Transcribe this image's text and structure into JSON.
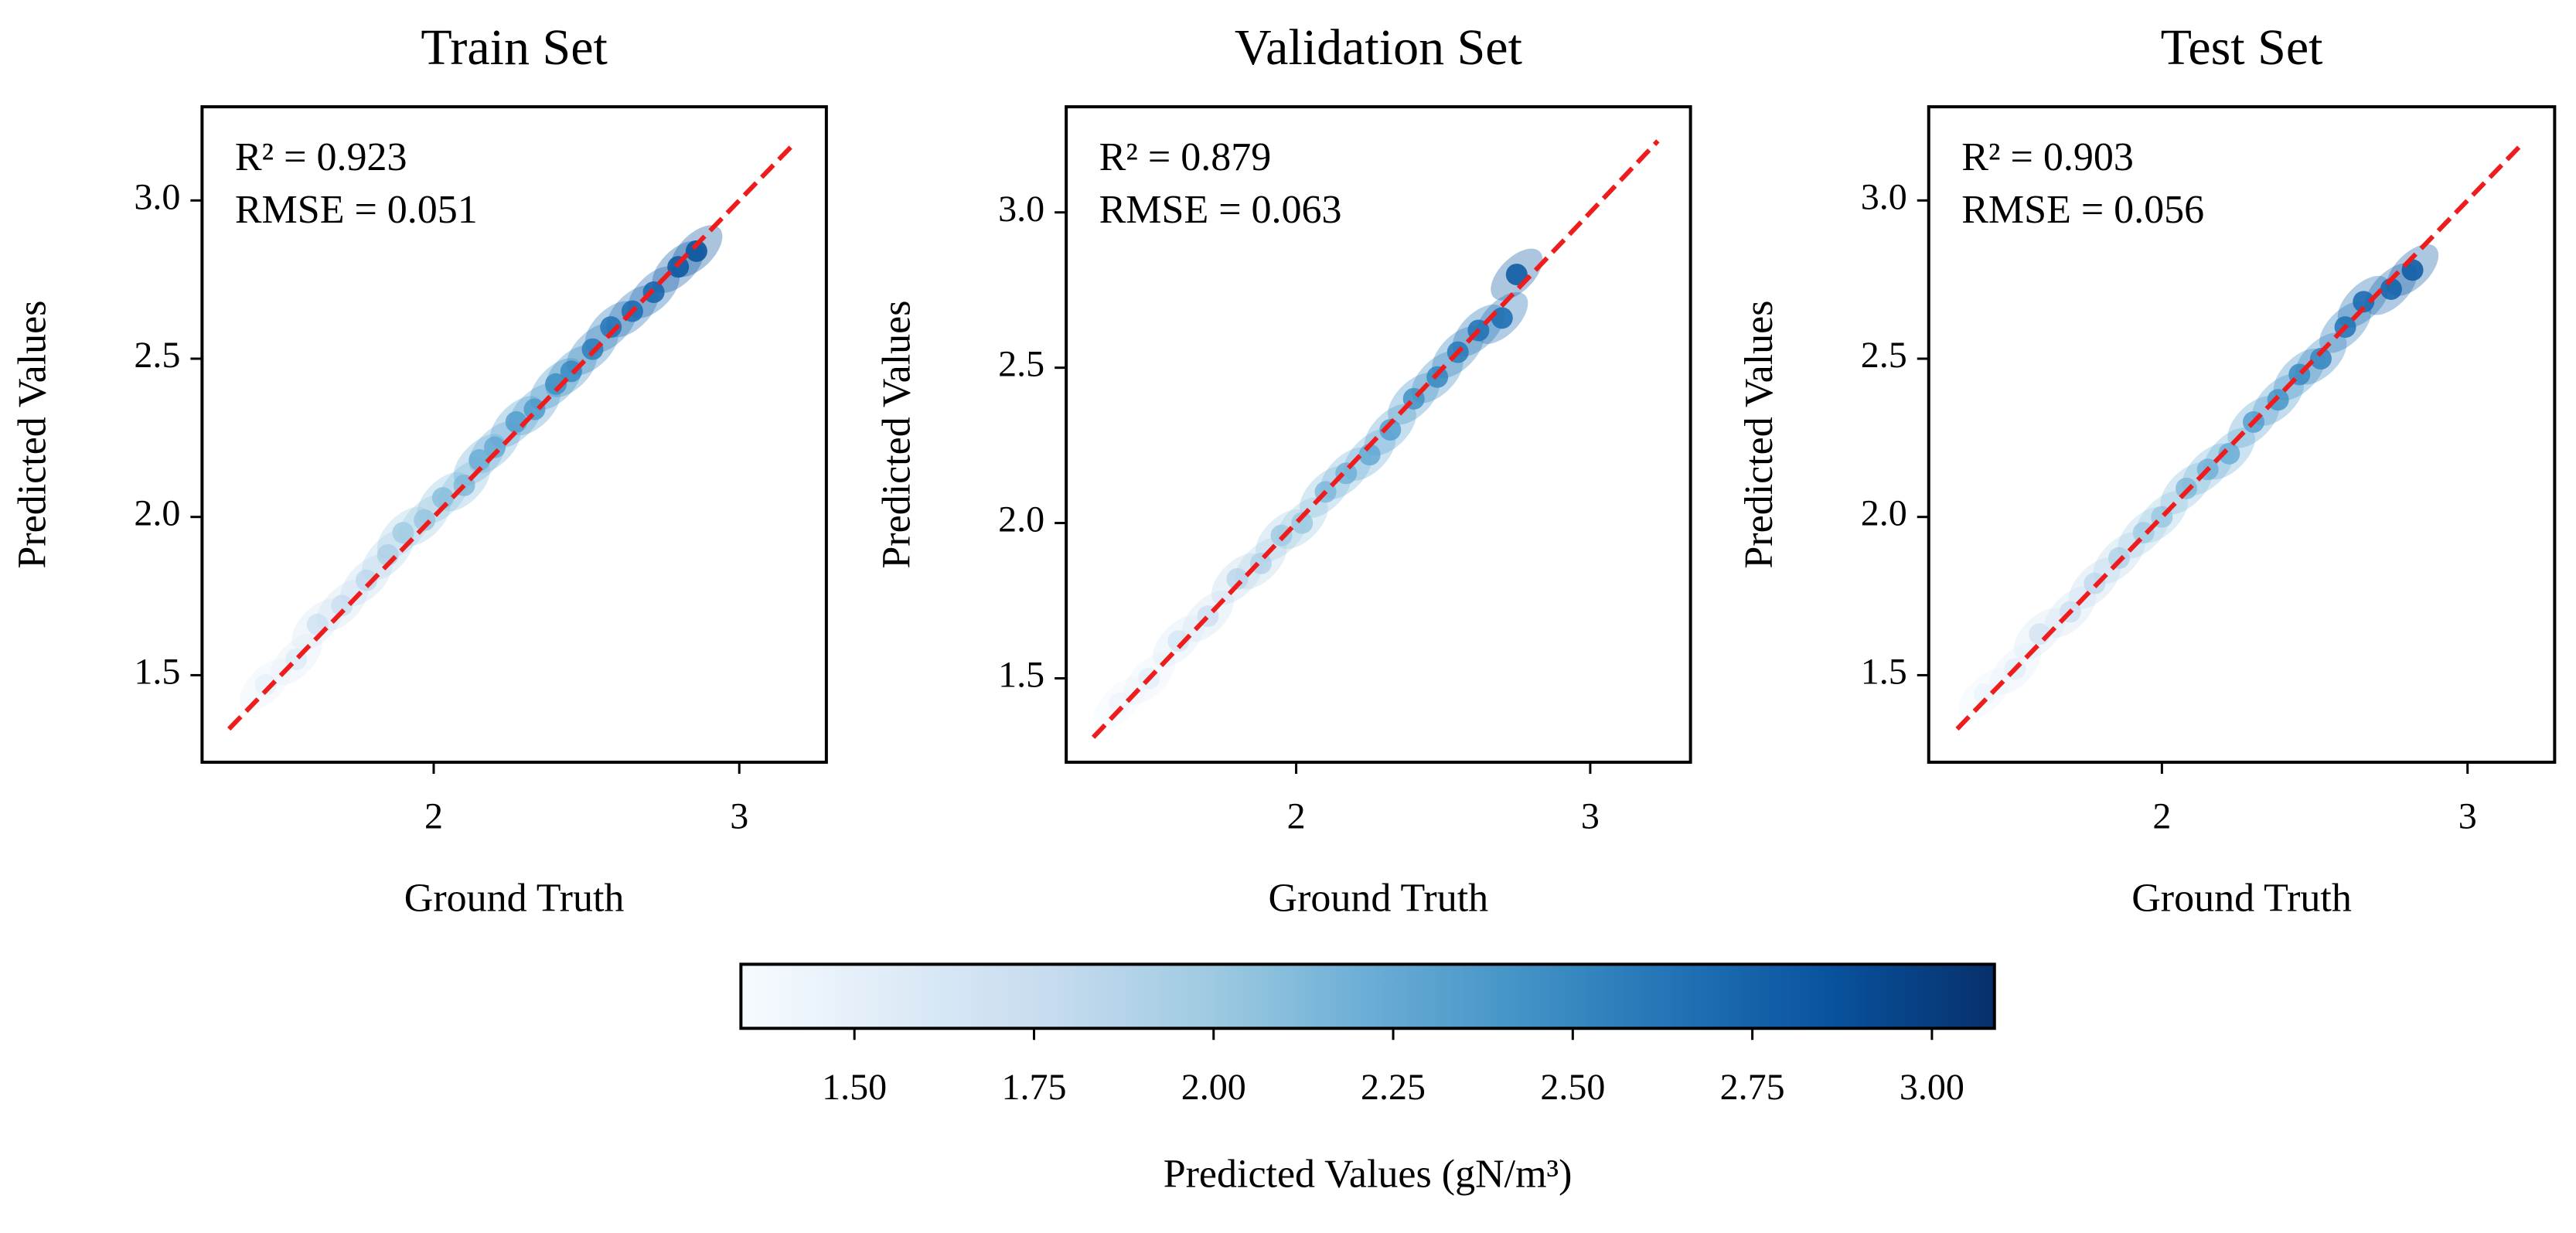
{
  "chart_data": [
    {
      "type": "scatter",
      "title": "Train Set",
      "xlabel": "Ground Truth",
      "ylabel": "Predicted Values",
      "annotations": [
        "R² = 0.923",
        "RMSE = 0.051"
      ],
      "colormap": "Blues",
      "x": [
        1.45,
        1.55,
        1.62,
        1.7,
        1.78,
        1.85,
        1.9,
        1.97,
        2.03,
        2.1,
        2.15,
        2.2,
        2.27,
        2.33,
        2.4,
        2.45,
        2.52,
        2.58,
        2.65,
        2.72,
        2.8,
        2.86
      ],
      "y": [
        1.47,
        1.55,
        1.66,
        1.72,
        1.8,
        1.88,
        1.95,
        1.99,
        2.06,
        2.1,
        2.18,
        2.22,
        2.3,
        2.34,
        2.42,
        2.46,
        2.53,
        2.6,
        2.65,
        2.71,
        2.79,
        2.84
      ],
      "xlim": [
        1.242,
        3.285
      ],
      "ylim": [
        1.225,
        3.296
      ],
      "xticks": [
        2,
        3
      ],
      "yticks": [
        1.5,
        {
          "value": 2,
          "label": "2.0"
        },
        2.5,
        {
          "value": 3,
          "label": "3.0"
        }
      ],
      "reference_line": {
        "x": [
          1.33,
          3.18
        ],
        "y": [
          1.33,
          3.18
        ],
        "color": "#ee1c1c",
        "style": "dashed"
      }
    },
    {
      "type": "scatter",
      "title": "Validation Set",
      "xlabel": "Ground Truth",
      "ylabel": "Predicted Values",
      "annotations": [
        "R² = 0.879",
        "RMSE = 0.063"
      ],
      "colormap": "Blues",
      "x": [
        1.4,
        1.5,
        1.6,
        1.7,
        1.8,
        1.88,
        1.95,
        2.02,
        2.1,
        2.17,
        2.25,
        2.32,
        2.4,
        2.48,
        2.55,
        2.62,
        2.7,
        2.75
      ],
      "y": [
        1.42,
        1.5,
        1.62,
        1.7,
        1.82,
        1.87,
        1.96,
        2.0,
        2.1,
        2.16,
        2.22,
        2.3,
        2.4,
        2.47,
        2.55,
        2.62,
        2.66,
        2.8
      ],
      "xlim": [
        1.218,
        3.341
      ],
      "ylim": [
        1.23,
        3.34
      ],
      "xticks": [
        2,
        3
      ],
      "yticks": [
        1.5,
        {
          "value": 2,
          "label": "2.0"
        },
        2.5,
        {
          "value": 3,
          "label": "3.0"
        }
      ],
      "reference_line": {
        "x": [
          1.31,
          3.23
        ],
        "y": [
          1.31,
          3.23
        ],
        "color": "#ee1c1c",
        "style": "dashed"
      }
    },
    {
      "type": "scatter",
      "title": "Test Set",
      "xlabel": "Ground Truth",
      "ylabel": "Predicted Values",
      "annotations": [
        "R² = 0.903",
        "RMSE = 0.056"
      ],
      "colormap": "Blues",
      "x": [
        1.42,
        1.52,
        1.6,
        1.7,
        1.78,
        1.86,
        1.94,
        2.0,
        2.08,
        2.15,
        2.22,
        2.3,
        2.38,
        2.45,
        2.52,
        2.6,
        2.66,
        2.75,
        2.82
      ],
      "y": [
        1.44,
        1.52,
        1.63,
        1.7,
        1.79,
        1.87,
        1.95,
        2.0,
        2.09,
        2.15,
        2.2,
        2.3,
        2.37,
        2.45,
        2.5,
        2.6,
        2.68,
        2.72,
        2.78
      ],
      "xlim": [
        1.237,
        3.285
      ],
      "ylim": [
        1.225,
        3.296
      ],
      "xticks": [
        2,
        3
      ],
      "yticks": [
        1.5,
        {
          "value": 2,
          "label": "2.0"
        },
        2.5,
        {
          "value": 3,
          "label": "3.0"
        }
      ],
      "reference_line": {
        "x": [
          1.33,
          3.18
        ],
        "y": [
          1.33,
          3.18
        ],
        "color": "#ee1c1c",
        "style": "dashed"
      }
    },
    {
      "type": "colorbar",
      "label": "Predicted Values (gN/m³)",
      "colormap": "Blues",
      "clim": [
        1.342,
        3.087
      ],
      "ticks": [
        {
          "value": 1.5,
          "label": "1.50"
        },
        {
          "value": 1.75,
          "label": "1.75"
        },
        {
          "value": 2,
          "label": "2.00"
        },
        {
          "value": 2.25,
          "label": "2.25"
        },
        {
          "value": 2.5,
          "label": "2.50"
        },
        {
          "value": 2.75,
          "label": "2.75"
        },
        {
          "value": 3,
          "label": "3.00"
        }
      ]
    }
  ]
}
